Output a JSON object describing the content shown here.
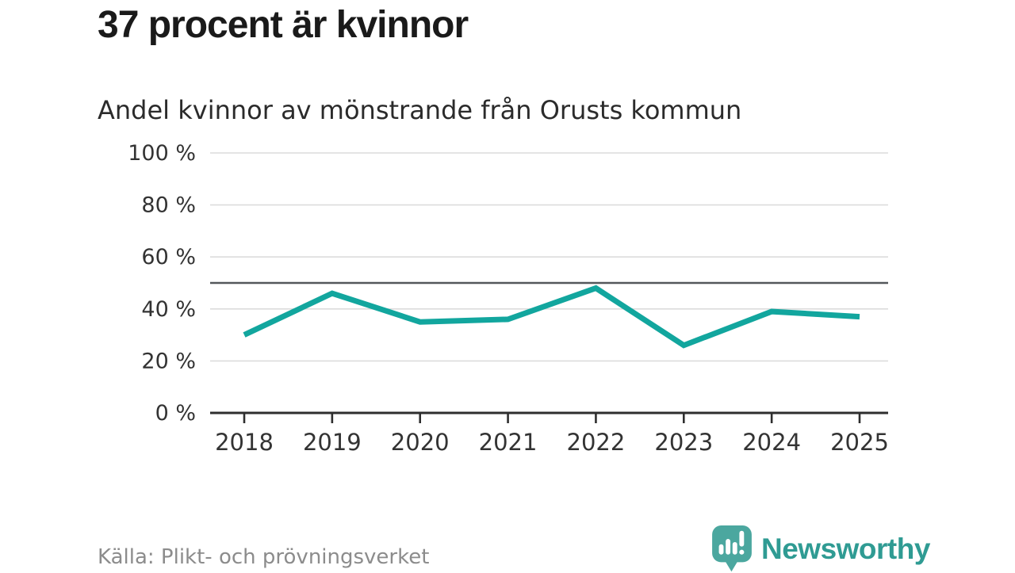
{
  "header": {
    "title": "37 procent är kvinnor",
    "subtitle": "Andel kvinnor av mönstrande från Orusts kommun"
  },
  "footer": {
    "source": "Källa: Plikt- och prövningsverket",
    "brand": "Newsworthy",
    "logo_icon": "newsworthy-speech-bubble-barchart-icon"
  },
  "colors": {
    "line": "#12a69e",
    "grid": "#dcdcdc",
    "axis": "#2e2e2e",
    "reference_line": "#54585b",
    "tick_text": "#333333",
    "title_text": "#1a1a1a",
    "muted_text": "#8c8c8c",
    "brand_teal": "#2f9b93",
    "logo_bubble": "#4ba79f"
  },
  "chart_data": {
    "type": "line",
    "title": "37 procent är kvinnor",
    "subtitle": "Andel kvinnor av mönstrande från Orusts kommun",
    "x": [
      2018,
      2019,
      2020,
      2021,
      2022,
      2023,
      2024,
      2025
    ],
    "x_tick_labels": [
      "2018",
      "2019",
      "2020",
      "2021",
      "2022",
      "2023",
      "2024",
      "2025"
    ],
    "series": [
      {
        "name": "Andel kvinnor av mönstrande (%)",
        "color": "#12a69e",
        "values": [
          30,
          46,
          35,
          36,
          48,
          26,
          39,
          37
        ]
      }
    ],
    "ylim": [
      0,
      100
    ],
    "yticks": [
      0,
      20,
      40,
      60,
      80,
      100
    ],
    "ytick_labels": [
      "0 %",
      "20 %",
      "40 %",
      "60 %",
      "80 %",
      "100 %"
    ],
    "reference_line_value": 50,
    "grid": "horizontal-only",
    "legend": "none"
  }
}
